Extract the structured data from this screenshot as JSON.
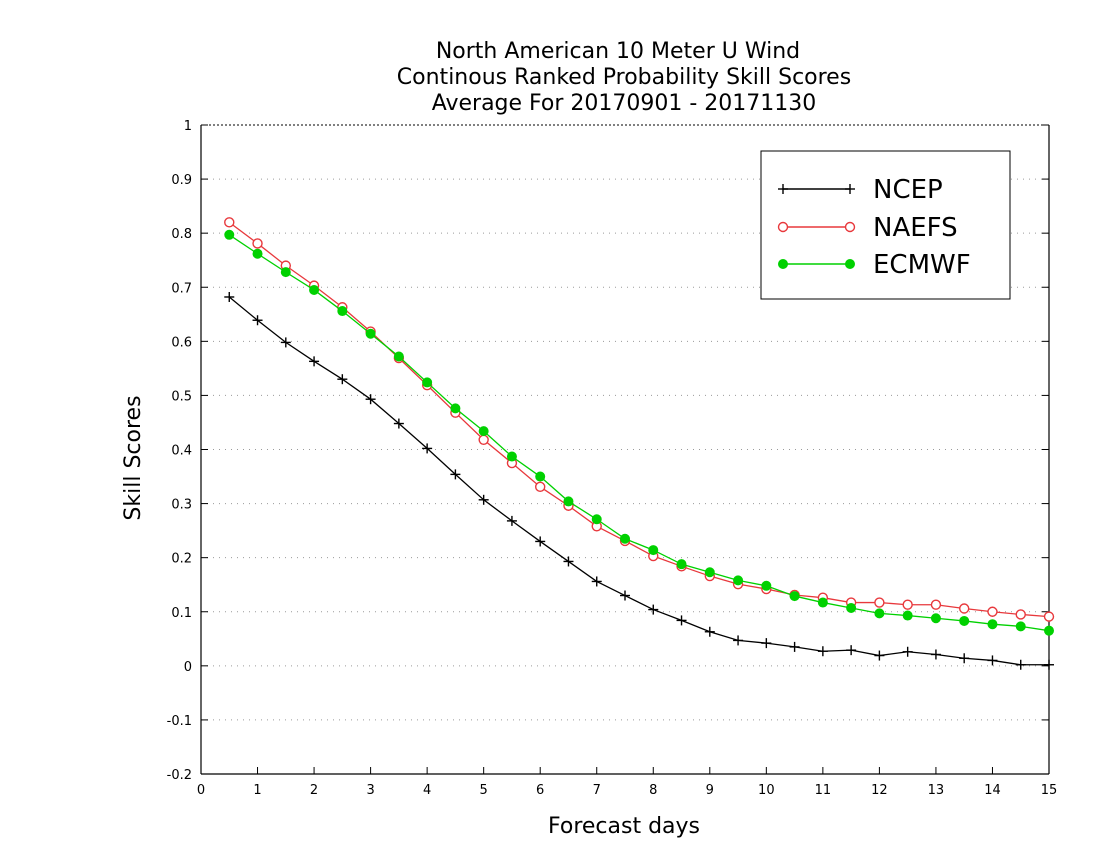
{
  "chart_data": {
    "type": "line",
    "title": [
      "North American 10 Meter U Wind",
      "Continous Ranked Probability Skill Scores",
      "Average For 20170901 - 20171130"
    ],
    "xlabel": "Forecast days",
    "ylabel": "Skill Scores",
    "xlim": [
      0,
      15
    ],
    "ylim": [
      -0.2,
      1
    ],
    "xticks": [
      0,
      1,
      2,
      3,
      4,
      5,
      6,
      7,
      8,
      9,
      10,
      11,
      12,
      13,
      14,
      15
    ],
    "yticks": [
      -0.2,
      -0.1,
      0,
      0.1,
      0.2,
      0.3,
      0.4,
      0.5,
      0.6,
      0.7,
      0.8,
      0.9,
      1
    ],
    "ytick_labels": [
      "-0.2",
      "-0.1",
      "0",
      "0.1",
      "0.2",
      "0.3",
      "0.4",
      "0.5",
      "0.6",
      "0.7",
      "0.8",
      "0.9",
      "1"
    ],
    "grid": "horizontal-dotted",
    "legend_position": "top-right",
    "x": [
      0.5,
      1,
      1.5,
      2,
      2.5,
      3,
      3.5,
      4,
      4.5,
      5,
      5.5,
      6,
      6.5,
      7,
      7.5,
      8,
      8.5,
      9,
      9.5,
      10,
      10.5,
      11,
      11.5,
      12,
      12.5,
      13,
      13.5,
      14,
      14.5,
      15
    ],
    "series": [
      {
        "name": "NCEP",
        "color": "#000000",
        "marker": "plus",
        "values": [
          0.682,
          0.639,
          0.598,
          0.563,
          0.53,
          0.493,
          0.448,
          0.402,
          0.354,
          0.307,
          0.268,
          0.23,
          0.193,
          0.156,
          0.13,
          0.104,
          0.084,
          0.063,
          0.047,
          0.042,
          0.035,
          0.027,
          0.029,
          0.019,
          0.026,
          0.021,
          0.014,
          0.01,
          0.002,
          0.002
        ]
      },
      {
        "name": "NAEFS",
        "color": "#e8383c",
        "marker": "open-circle",
        "values": [
          0.82,
          0.781,
          0.74,
          0.703,
          0.663,
          0.618,
          0.569,
          0.519,
          0.468,
          0.418,
          0.375,
          0.331,
          0.296,
          0.258,
          0.231,
          0.203,
          0.184,
          0.166,
          0.151,
          0.142,
          0.131,
          0.126,
          0.117,
          0.117,
          0.113,
          0.113,
          0.106,
          0.1,
          0.095,
          0.091
        ]
      },
      {
        "name": "ECMWF",
        "color": "#00d100",
        "marker": "filled-circle",
        "values": [
          0.797,
          0.762,
          0.728,
          0.695,
          0.656,
          0.614,
          0.572,
          0.524,
          0.476,
          0.434,
          0.387,
          0.35,
          0.304,
          0.271,
          0.235,
          0.214,
          0.188,
          0.173,
          0.158,
          0.148,
          0.129,
          0.117,
          0.107,
          0.097,
          0.093,
          0.088,
          0.083,
          0.077,
          0.073,
          0.065
        ]
      }
    ]
  }
}
